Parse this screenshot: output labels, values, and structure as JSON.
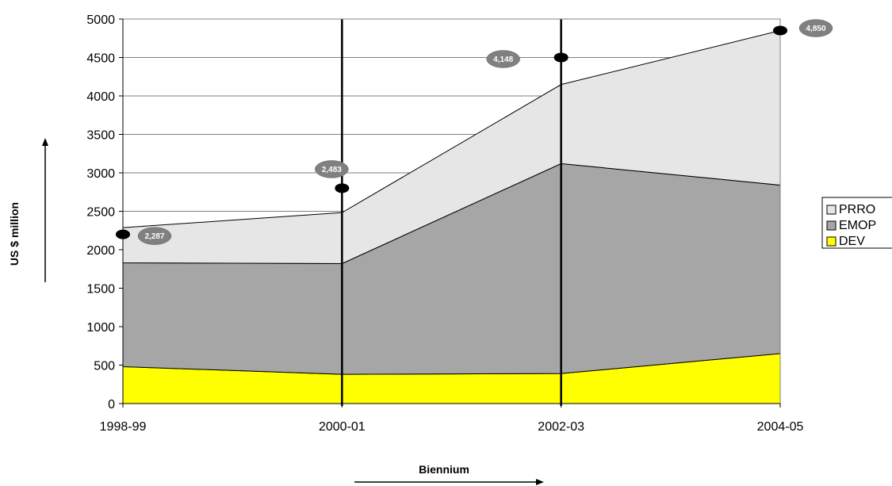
{
  "chart_data": {
    "type": "area",
    "stacked": true,
    "x": [
      "1998-99",
      "2000-01",
      "2002-03",
      "2004-05"
    ],
    "xlabel": "Biennium",
    "ylabel": "US $ million",
    "ylim": [
      0,
      5000
    ],
    "yticks": [
      0,
      500,
      1000,
      1500,
      2000,
      2500,
      3000,
      3500,
      4000,
      4500,
      5000
    ],
    "grid": true,
    "legend_position": "right",
    "series": [
      {
        "name": "DEV",
        "color": "#ffff00",
        "values": [
          480,
          380,
          390,
          650
        ]
      },
      {
        "name": "EMOP",
        "color": "#a6a6a6",
        "values": [
          1350,
          1440,
          2730,
          2190
        ]
      },
      {
        "name": "PRRO",
        "color": "#e6e6e6",
        "values": [
          457,
          663,
          1028,
          2010
        ]
      }
    ],
    "totals": [
      2287,
      2483,
      4148,
      4850
    ],
    "total_labels": [
      "2,287",
      "2,483",
      "4,148",
      "4,850"
    ],
    "markers": [
      2200,
      2800,
      4500,
      4850
    ],
    "vertical_lines": [
      "2000-01",
      "2002-03"
    ]
  }
}
